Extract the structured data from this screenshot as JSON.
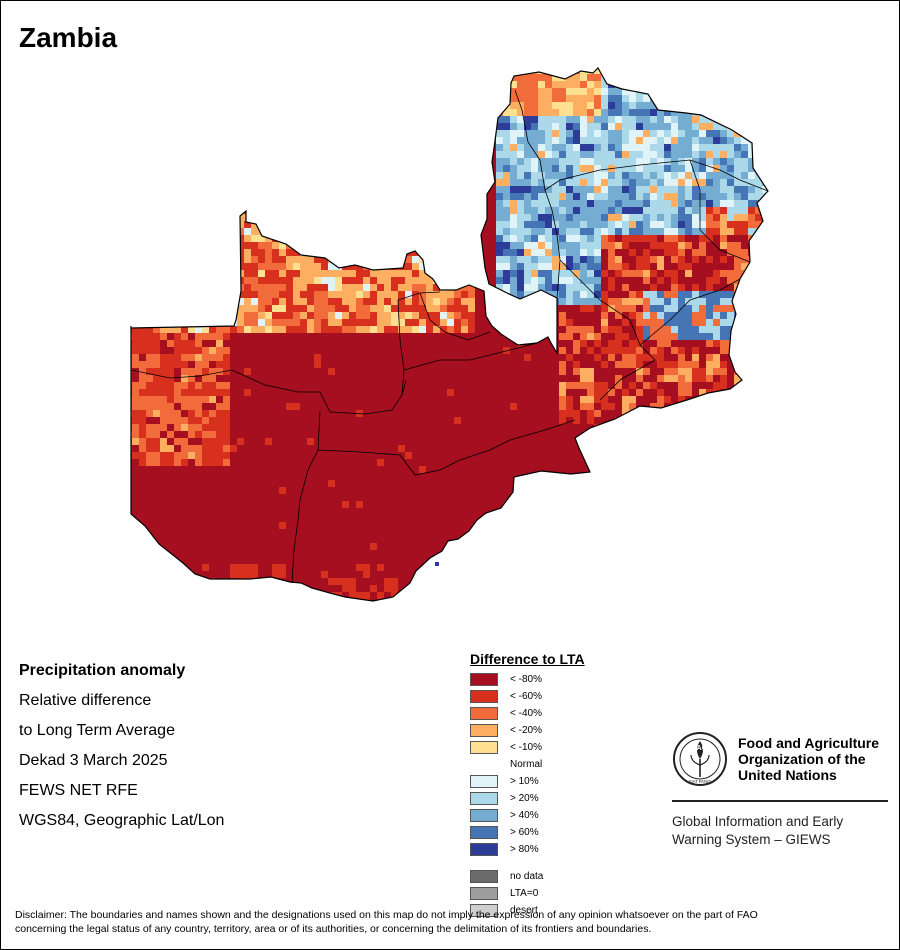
{
  "title": "Zambia",
  "meta": {
    "line1": "Precipitation anomaly",
    "line2": "Relative difference",
    "line3": "to Long Term Average",
    "line4": "Dekad 3 March 2025",
    "line5": "FEWS NET RFE",
    "line6": "WGS84, Geographic Lat/Lon"
  },
  "legend": {
    "title": "Difference to LTA",
    "classes": [
      {
        "label": "< -80%",
        "color": "#a50f1f"
      },
      {
        "label": "< -60%",
        "color": "#d7301f"
      },
      {
        "label": "< -40%",
        "color": "#f26b3a"
      },
      {
        "label": "< -20%",
        "color": "#fdae61"
      },
      {
        "label": "< -10%",
        "color": "#fee090"
      },
      {
        "label": "Normal",
        "color": "#ffffff"
      },
      {
        "label": "> 10%",
        "color": "#e0f3f8"
      },
      {
        "label": "> 20%",
        "color": "#abd9e9"
      },
      {
        "label": "> 40%",
        "color": "#74add1"
      },
      {
        "label": "> 60%",
        "color": "#4575b4"
      },
      {
        "label": "> 80%",
        "color": "#2c3c98"
      }
    ],
    "extras": [
      {
        "label": "no data",
        "color": "#6b6b6b"
      },
      {
        "label": "LTA=0",
        "color": "#9e9e9e"
      },
      {
        "label": "desert",
        "color": "#cfcfcf"
      }
    ]
  },
  "fao": {
    "name_line1": "Food and Agriculture",
    "name_line2": "Organization of the",
    "name_line3": "United Nations",
    "emblem_letters": "FAO",
    "emblem_motto": "FIAT PANIS",
    "giews_line1": "Global Information and Early",
    "giews_line2": "Warning System – GIEWS"
  },
  "disclaimer": {
    "line1": "Disclaimer: The boundaries and names shown and the designations used on this map do not imply the expression of any opinion whatsoever on the part of FAO",
    "line2": "concerning the legal status of any country, territory, area or of its authorities, or concerning the delimitation of its frontiers and boundaries."
  }
}
